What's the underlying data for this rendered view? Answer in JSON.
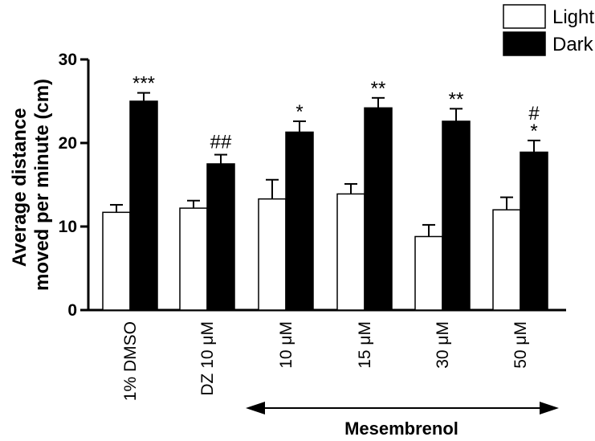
{
  "chart_data": {
    "type": "bar",
    "ylabel": [
      "Average distance",
      "moved per minute (cm)"
    ],
    "ylim": [
      0,
      30
    ],
    "yticks": [
      0,
      10,
      20,
      30
    ],
    "categories": [
      "1% DMSO",
      "DZ 10 μM",
      "10 μM",
      "15 μM",
      "30 μM",
      "50 μM"
    ],
    "series": [
      {
        "name": "Light",
        "color": "#ffffff",
        "values": [
          11.7,
          12.2,
          13.3,
          13.9,
          8.8,
          12.0
        ],
        "errors": [
          0.9,
          0.9,
          2.3,
          1.2,
          1.4,
          1.5
        ]
      },
      {
        "name": "Dark",
        "color": "#000000",
        "values": [
          25.0,
          17.5,
          21.3,
          24.2,
          22.6,
          18.9
        ],
        "errors": [
          1.0,
          1.1,
          1.3,
          1.2,
          1.5,
          1.4
        ]
      }
    ],
    "significance": [
      "***",
      "##",
      "*",
      "**",
      "**",
      "*"
    ],
    "significance_extra": [
      "",
      "",
      "",
      "",
      "",
      "#"
    ],
    "group_label": "Mesembrenol",
    "legend_position": "top-right",
    "grid": false
  }
}
